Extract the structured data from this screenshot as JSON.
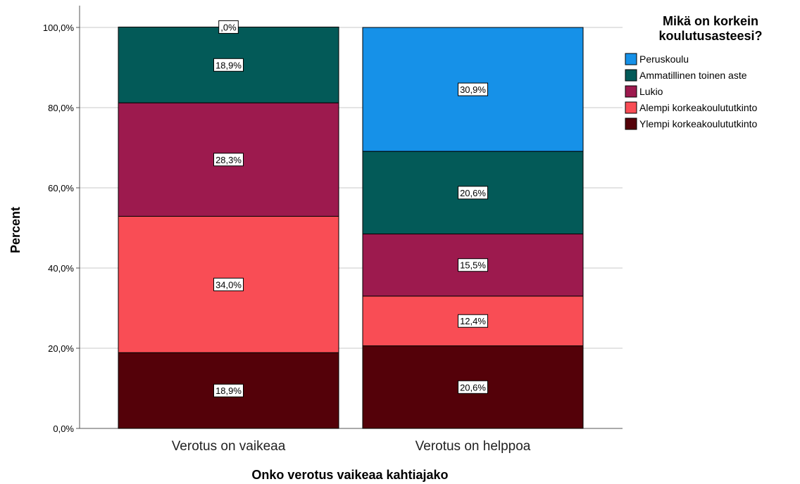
{
  "chart_data": {
    "type": "bar",
    "stacked": true,
    "categories": [
      "Verotus on vaikeaa",
      "Verotus on helppoa"
    ],
    "xlabel": "Onko verotus vaikeaa kahtiajako",
    "ylabel": "Percent",
    "ylim": [
      0,
      100
    ],
    "yticks": [
      "0,0%",
      "20,0%",
      "40,0%",
      "60,0%",
      "80,0%",
      "100,0%"
    ],
    "grid": true,
    "legend": {
      "title": "Mikä on korkein koulutusasteesi?",
      "title_lines": [
        "Mikä on korkein",
        "koulutusasteesi?"
      ],
      "placement": "top-right"
    },
    "series": [
      {
        "name": "Ylempi korkeakoulututkinto",
        "color": "#540109",
        "values": [
          18.9,
          20.6
        ],
        "labels": [
          "18,9%",
          "20,6%"
        ]
      },
      {
        "name": "Alempi korkeakoulututkinto",
        "color": "#f94d55",
        "values": [
          34.0,
          12.4
        ],
        "labels": [
          "34,0%",
          "12,4%"
        ]
      },
      {
        "name": "Lukio",
        "color": "#9d1a4e",
        "values": [
          28.3,
          15.5
        ],
        "labels": [
          "28,3%",
          "15,5%"
        ]
      },
      {
        "name": "Ammatillinen toinen aste",
        "color": "#035a58",
        "values": [
          18.9,
          20.6
        ],
        "labels": [
          "18,9%",
          "20,6%"
        ]
      },
      {
        "name": "Peruskoulu",
        "color": "#1691e8",
        "values": [
          0.0,
          30.9
        ],
        "labels": [
          ",0%",
          "30,9%"
        ]
      }
    ],
    "legend_order": [
      "Peruskoulu",
      "Ammatillinen toinen aste",
      "Lukio",
      "Alempi korkeakoulututkinto",
      "Ylempi korkeakoulututkinto"
    ]
  }
}
